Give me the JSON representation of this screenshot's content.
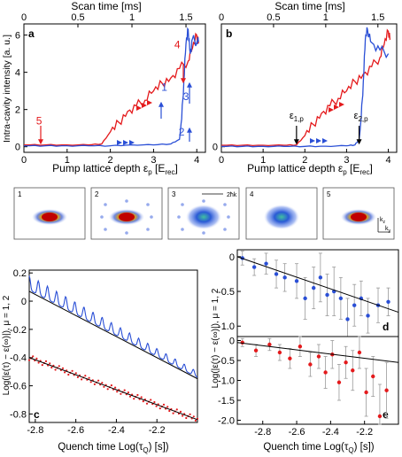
{
  "chart_data": [
    {
      "id": "a",
      "type": "line",
      "panel_label": "a",
      "xlabel": "Pump lattice depth ε",
      "xlabel_sub": "p",
      "xlabel_unit": " [E",
      "xlabel_unit_sub": "rec",
      "xlabel_close": "]",
      "top_xlabel": "Scan time [ms]",
      "ylabel": "Intra-cavity intensity [a. u.]",
      "xlim": [
        0,
        4.2
      ],
      "ylim": [
        -0.3,
        6.6
      ],
      "x_ticks": [
        "0",
        "1",
        "2",
        "3",
        "4"
      ],
      "top_ticks": [
        "0",
        "0.5",
        "1",
        "1.5"
      ],
      "y_ticks": [
        "0",
        "2",
        "4",
        "6"
      ],
      "colors": {
        "red": "#e41a1c",
        "blue": "#2a4fd6"
      },
      "series": [
        {
          "color": "#e41a1c",
          "x": [
            0,
            0.5,
            1.0,
            1.5,
            1.8,
            2.0,
            2.2,
            2.4,
            2.6,
            2.8,
            3.0,
            3.2,
            3.4,
            3.6,
            3.8,
            3.9,
            4.0,
            4.05
          ],
          "y": [
            0.1,
            0.1,
            0.1,
            0.1,
            0.15,
            0.8,
            1.3,
            1.9,
            2.2,
            2.5,
            3.0,
            3.4,
            3.7,
            4.2,
            4.6,
            5.3,
            6.0,
            5.6
          ]
        },
        {
          "color": "#2a4fd6",
          "x": [
            0,
            0.5,
            1.0,
            1.5,
            2.0,
            2.5,
            3.0,
            3.4,
            3.6,
            3.65,
            3.7,
            3.75,
            3.8,
            3.85,
            3.9,
            4.0,
            4.05
          ],
          "y": [
            0.05,
            0.05,
            0.05,
            0.05,
            0.05,
            0.1,
            0.1,
            0.15,
            0.4,
            1.5,
            3.5,
            5.5,
            6.3,
            5.0,
            5.8,
            5.6,
            5.7
          ]
        }
      ],
      "annotations": [
        {
          "text": "4",
          "color": "#e41a1c",
          "x": 3.55,
          "y": 5.3
        },
        {
          "text": "5",
          "color": "#e41a1c",
          "x": 0.35,
          "y": 1.2
        },
        {
          "text": "1",
          "color": "#2a4fd6",
          "x": 3.25,
          "y": 3.0
        },
        {
          "text": "3",
          "color": "#2a4fd6",
          "x": 3.75,
          "y": 2.5
        },
        {
          "text": "2",
          "color": "#2a4fd6",
          "x": 3.65,
          "y": 0.6
        }
      ]
    },
    {
      "id": "b",
      "type": "line",
      "panel_label": "b",
      "xlabel": "Pump lattice depth ε",
      "xlabel_sub": "p",
      "xlabel_unit": " [E",
      "xlabel_unit_sub": "rec",
      "xlabel_close": "]",
      "top_xlabel": "Scan time [ms]",
      "xlim": [
        0,
        4.2
      ],
      "ylim": [
        -0.3,
        6.6
      ],
      "x_ticks": [
        "0",
        "1",
        "2",
        "3",
        "4"
      ],
      "top_ticks": [
        "0",
        "0.5",
        "1",
        "1.5"
      ],
      "y_ticks": [
        "0"
      ],
      "series": [
        {
          "color": "#e41a1c",
          "x": [
            0,
            0.5,
            1.0,
            1.5,
            1.8,
            2.0,
            2.2,
            2.4,
            2.6,
            2.8,
            3.0,
            3.2,
            3.4,
            3.6,
            3.8,
            3.9,
            4.0,
            4.05
          ],
          "y": [
            0.08,
            0.08,
            0.08,
            0.08,
            0.1,
            0.6,
            1.2,
            1.8,
            2.2,
            2.6,
            3.0,
            3.5,
            3.9,
            4.3,
            4.8,
            5.5,
            6.2,
            5.8
          ]
        },
        {
          "color": "#2a4fd6",
          "x": [
            0,
            0.5,
            1.0,
            1.5,
            2.0,
            2.5,
            3.0,
            3.2,
            3.3,
            3.35,
            3.4,
            3.45,
            3.5,
            3.6,
            3.8,
            4.0
          ],
          "y": [
            0.02,
            0.02,
            0.02,
            0.02,
            0.02,
            0.03,
            0.05,
            0.1,
            0.4,
            1.5,
            3.5,
            5.8,
            6.3,
            5.6,
            5.2,
            5.0
          ]
        }
      ],
      "markers": [
        {
          "label": "ε",
          "sub": "1,p",
          "x": 1.8
        },
        {
          "label": "ε",
          "sub": "2,p",
          "x": 3.3
        }
      ]
    },
    {
      "id": "c",
      "type": "scatter",
      "panel_label": "c",
      "xlabel": "Quench time Log(τ",
      "xlabel_sub": "Q",
      "xlabel_close": ") [s])",
      "ylabel": "Log(|ε(τ) − ε(∞)|),  μ = 1, 2",
      "xlim": [
        -2.83,
        -2.0
      ],
      "ylim": [
        -0.86,
        0.22
      ],
      "x_ticks": [
        "-2.8",
        "-2.6",
        "-2.4",
        "-2.2"
      ],
      "y_ticks": [
        "0.2",
        "0",
        "-0.2",
        "-0.4",
        "-0.6",
        "-0.8"
      ],
      "fit_lines": [
        {
          "x": [
            -2.83,
            -2.0
          ],
          "y": [
            0.07,
            -0.55
          ]
        },
        {
          "x": [
            -2.83,
            -2.0
          ],
          "y": [
            -0.4,
            -0.84
          ]
        }
      ]
    },
    {
      "id": "d",
      "type": "scatter",
      "panel_label": "d",
      "xlim": [
        -2.95,
        -2.0
      ],
      "ylim": [
        -1.15,
        0.1
      ],
      "y_ticks": [
        "0",
        "-0.5",
        "-1.0"
      ],
      "points": [
        {
          "x": -2.92,
          "y": -0.02,
          "e": 0.1
        },
        {
          "x": -2.85,
          "y": -0.15,
          "e": 0.12
        },
        {
          "x": -2.78,
          "y": -0.1,
          "e": 0.15
        },
        {
          "x": -2.72,
          "y": -0.25,
          "e": 0.2
        },
        {
          "x": -2.67,
          "y": -0.3,
          "e": 0.2
        },
        {
          "x": -2.6,
          "y": -0.35,
          "e": 0.25
        },
        {
          "x": -2.55,
          "y": -0.6,
          "e": 0.3
        },
        {
          "x": -2.5,
          "y": -0.45,
          "e": 0.3
        },
        {
          "x": -2.46,
          "y": -0.3,
          "e": 0.35
        },
        {
          "x": -2.42,
          "y": -0.55,
          "e": 0.3
        },
        {
          "x": -2.38,
          "y": -0.5,
          "e": 0.35
        },
        {
          "x": -2.34,
          "y": -0.6,
          "e": 0.3
        },
        {
          "x": -2.3,
          "y": -0.9,
          "e": 0.3
        },
        {
          "x": -2.26,
          "y": -0.7,
          "e": 0.3
        },
        {
          "x": -2.22,
          "y": -0.6,
          "e": 0.25
        },
        {
          "x": -2.18,
          "y": -0.85,
          "e": 0.25
        },
        {
          "x": -2.12,
          "y": -0.7,
          "e": 0.25
        },
        {
          "x": -2.06,
          "y": -0.65,
          "e": 0.2
        }
      ],
      "fit": {
        "x": [
          -2.95,
          -2.0
        ],
        "y": [
          0.0,
          -0.8
        ]
      }
    },
    {
      "id": "e",
      "type": "scatter",
      "panel_label": "e",
      "xlabel": "Quench time Log(τ",
      "xlabel_sub": "Q",
      "xlabel_close": ") [s])",
      "xlim": [
        -2.95,
        -2.0
      ],
      "ylim": [
        -2.1,
        0.1
      ],
      "x_ticks": [
        "-2.8",
        "-2.6",
        "-2.4",
        "-2.2"
      ],
      "y_ticks": [
        "0",
        "-0.5",
        "-1.0",
        "-1.5",
        "-2.0"
      ],
      "points": [
        {
          "x": -2.92,
          "y": -0.05,
          "e": 0.1
        },
        {
          "x": -2.84,
          "y": -0.25,
          "e": 0.15
        },
        {
          "x": -2.76,
          "y": -0.1,
          "e": 0.15
        },
        {
          "x": -2.7,
          "y": -0.3,
          "e": 0.2
        },
        {
          "x": -2.64,
          "y": -0.45,
          "e": 0.25
        },
        {
          "x": -2.58,
          "y": -0.15,
          "e": 0.25
        },
        {
          "x": -2.52,
          "y": -0.6,
          "e": 0.3
        },
        {
          "x": -2.47,
          "y": -0.4,
          "e": 0.3
        },
        {
          "x": -2.43,
          "y": -0.8,
          "e": 0.4
        },
        {
          "x": -2.39,
          "y": -0.35,
          "e": 0.35
        },
        {
          "x": -2.35,
          "y": -1.05,
          "e": 0.45
        },
        {
          "x": -2.31,
          "y": -0.55,
          "e": 0.4
        },
        {
          "x": -2.27,
          "y": -0.75,
          "e": 0.5
        },
        {
          "x": -2.23,
          "y": -0.3,
          "e": 0.4
        },
        {
          "x": -2.19,
          "y": -1.3,
          "e": 0.6
        },
        {
          "x": -2.15,
          "y": -0.9,
          "e": 0.5
        },
        {
          "x": -2.11,
          "y": -1.9,
          "e": 0.8
        },
        {
          "x": -2.07,
          "y": -1.25,
          "e": 0.7
        }
      ],
      "fit": {
        "x": [
          -2.95,
          -2.0
        ],
        "y": [
          -0.05,
          -0.55
        ]
      }
    }
  ],
  "thumbnails": [
    {
      "label": "1"
    },
    {
      "label": "2"
    },
    {
      "label": "3",
      "scale": "2ħk"
    },
    {
      "label": "4"
    },
    {
      "label": "5",
      "axis_y": "k",
      "axis_y_sub": "z",
      "axis_x": "k",
      "axis_x_sub": "y"
    }
  ],
  "right_ylabel": "Log(|ε(τ) − ε(∞)|),  μ = 1, 2"
}
